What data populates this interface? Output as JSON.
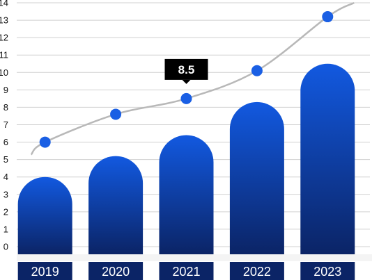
{
  "chart_data": {
    "type": "bar",
    "categories": [
      "2019",
      "2020",
      "2021",
      "2022",
      "2023"
    ],
    "series": [
      {
        "type": "bar",
        "values": [
          4.0,
          5.2,
          6.4,
          8.3,
          10.5
        ]
      },
      {
        "type": "line",
        "values": [
          6.0,
          7.6,
          8.5,
          10.1,
          13.2
        ]
      }
    ],
    "ylim": [
      0,
      14
    ],
    "yticks": [
      0,
      1,
      2,
      3,
      4,
      5,
      6,
      7,
      8,
      9,
      10,
      11,
      12,
      13,
      14
    ],
    "grid": true,
    "tooltip": {
      "category": "2021",
      "label": "8.5"
    },
    "colors": {
      "bar_top": "#1259e0",
      "bar_bottom": "#0b2466",
      "category_box": "#0b2466",
      "point": "#1a5fe4",
      "trend_line": "#b8b8b8",
      "grid": "#d0d0d0",
      "tooltip_bg": "#000000"
    }
  }
}
